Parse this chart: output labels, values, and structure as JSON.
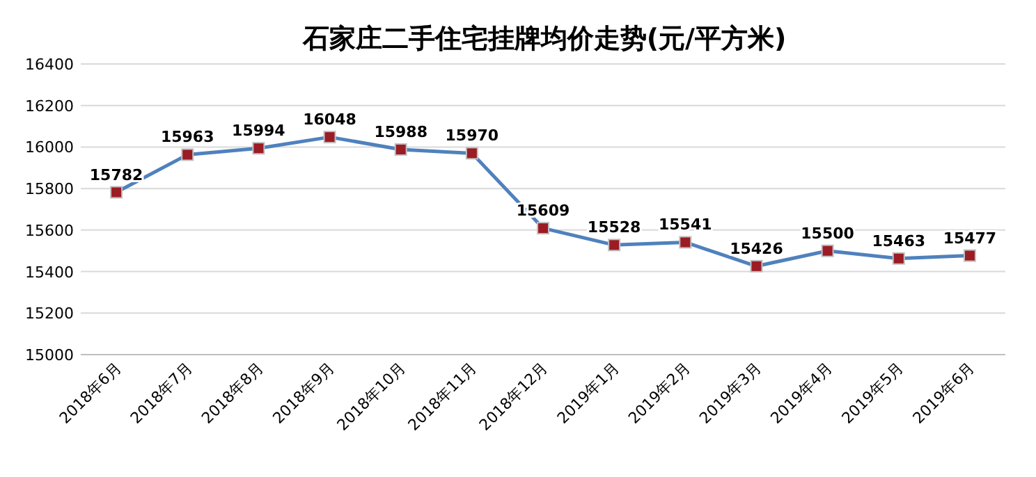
{
  "chart_data": {
    "type": "line",
    "title": "石家庄二手住宅挂牌均价走势(元/平方米)",
    "categories": [
      "2018年6月",
      "2018年7月",
      "2018年8月",
      "2018年9月",
      "2018年10月",
      "2018年11月",
      "2018年12月",
      "2019年1月",
      "2019年2月",
      "2019年3月",
      "2019年4月",
      "2019年5月",
      "2019年6月"
    ],
    "series": [
      {
        "color": "#4f81bd",
        "values": [
          15782,
          15963,
          15994,
          16048,
          15988,
          15970,
          15609,
          15528,
          15541,
          15426,
          15500,
          15463,
          15477
        ]
      }
    ],
    "ylim": [
      15000,
      16400
    ],
    "yticks": [
      15000,
      15200,
      15400,
      15600,
      15800,
      16000,
      16200,
      16400
    ],
    "grid": "y",
    "marker": "square",
    "line_style": "solid",
    "data_labels": true
  }
}
